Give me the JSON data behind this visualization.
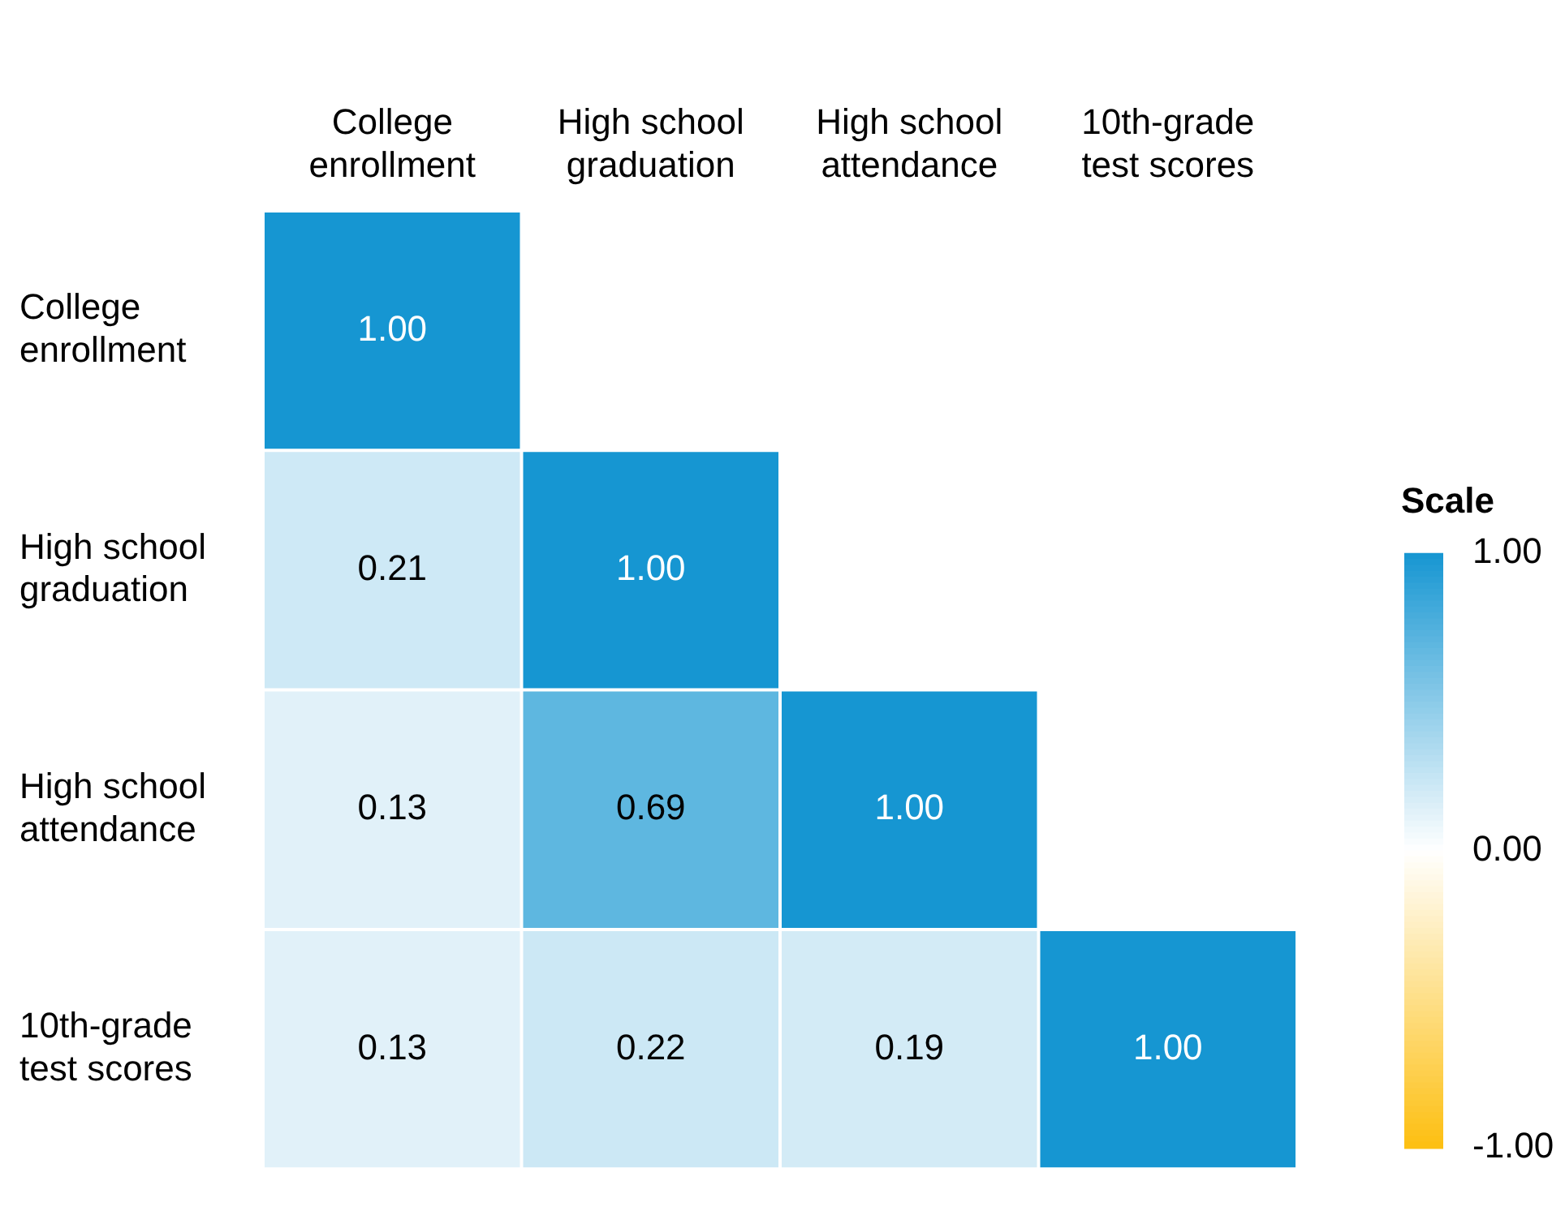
{
  "chart_data": {
    "type": "heatmap",
    "categories": [
      "College enrollment",
      "High school graduation",
      "High school attendance",
      "10th-grade test scores"
    ],
    "y_categories": [
      "College enrollment",
      "High school graduation",
      "High school attendance",
      "10th-grade test scores"
    ],
    "cells": [
      [
        1.0,
        null,
        null,
        null
      ],
      [
        0.21,
        1.0,
        null,
        null
      ],
      [
        0.13,
        0.69,
        1.0,
        null
      ],
      [
        0.13,
        0.22,
        0.19,
        1.0
      ]
    ],
    "cell_labels": [
      [
        "1.00",
        null,
        null,
        null
      ],
      [
        "0.21",
        "1.00",
        null,
        null
      ],
      [
        "0.13",
        "0.69",
        "1.00",
        null
      ],
      [
        "0.13",
        "0.22",
        "0.19",
        "1.00"
      ]
    ],
    "clabel": "Scale",
    "clim": [
      -1,
      1
    ],
    "cticks": [
      {
        "value": 1,
        "label": "1.00"
      },
      {
        "value": 0,
        "label": "0.00"
      },
      {
        "value": -1,
        "label": "-1.00"
      }
    ]
  }
}
